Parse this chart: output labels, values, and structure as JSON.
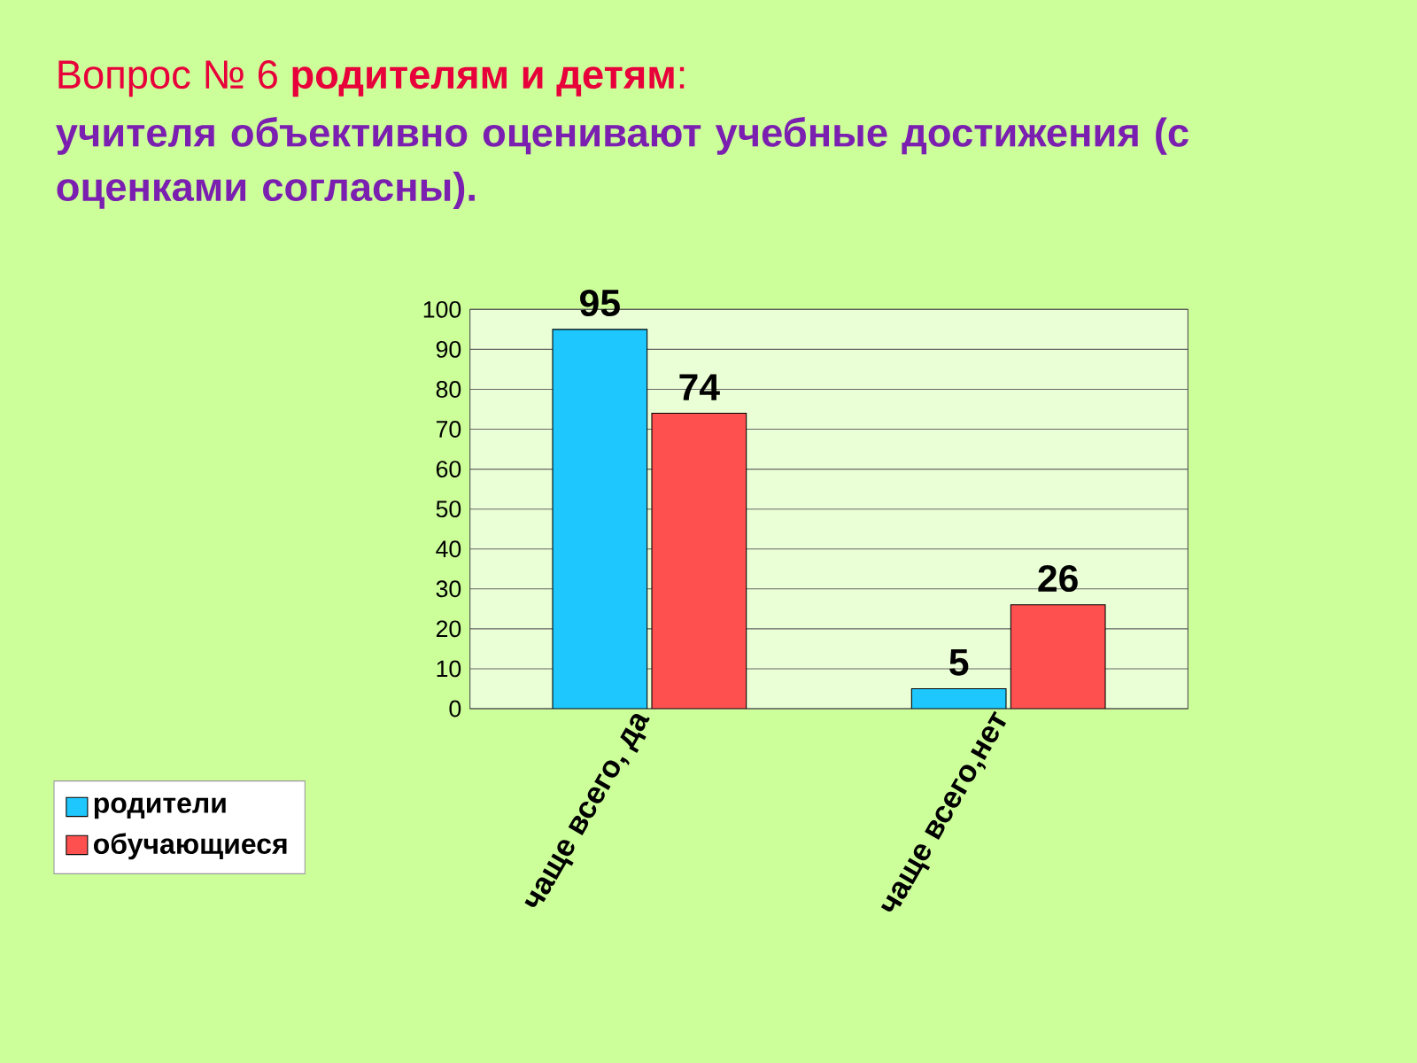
{
  "chart_data": {
    "type": "bar",
    "title": "Вопрос № 6 **родителям и детям**:",
    "subtitle": "учителя объективно оценивают учебные достижения (с оценками согласны).",
    "categories": [
      "чаще всего, да",
      "чаще всего,нет"
    ],
    "series": [
      {
        "name": "родители",
        "color": "#1ec8ff",
        "values": [
          95,
          5
        ]
      },
      {
        "name": "обучающиеся",
        "color": "#ff5050",
        "values": [
          74,
          26
        ]
      }
    ],
    "ylim": [
      0,
      100
    ],
    "yticks": [
      0,
      10,
      20,
      30,
      40,
      50,
      60,
      70,
      80,
      90,
      100
    ],
    "grid": "y",
    "legend": "bottom left",
    "data_labels": true
  }
}
